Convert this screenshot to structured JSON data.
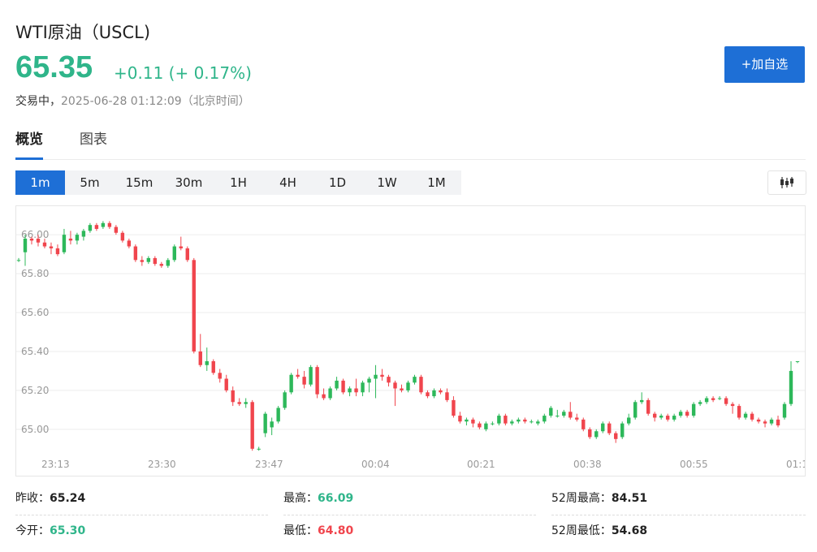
{
  "header": {
    "title": "WTI原油（USCL)",
    "price": "65.35",
    "change": "+0.11 (+ 0.17%)",
    "status_label": "交易中，",
    "timestamp": "2025-06-28 01:12:09（北京时间）",
    "add_button": "+加自选"
  },
  "tabs": [
    {
      "label": "概览",
      "active": true
    },
    {
      "label": "图表",
      "active": false
    }
  ],
  "periods": [
    "1m",
    "5m",
    "15m",
    "30m",
    "1H",
    "4H",
    "1D",
    "1W",
    "1M"
  ],
  "active_period": "1m",
  "colors": {
    "up": "#2db85a",
    "down": "#f0454d",
    "accent": "#1e6fd6",
    "price": "#2fb58a",
    "low": "#f0454d"
  },
  "chart_data": {
    "type": "candlestick",
    "y_ticks": [
      "66.00",
      "65.80",
      "65.60",
      "65.40",
      "65.20",
      "65.00"
    ],
    "ylim": [
      64.8,
      66.15
    ],
    "x_ticks": [
      "23:13",
      "23:30",
      "23:47",
      "00:04",
      "00:21",
      "00:38",
      "00:55",
      "01:1"
    ],
    "grid": true,
    "candles": [
      [
        65.87,
        65.88,
        65.86,
        65.87
      ],
      [
        65.91,
        66.0,
        65.84,
        65.98
      ],
      [
        65.98,
        65.99,
        65.95,
        65.97
      ],
      [
        65.98,
        66.0,
        65.94,
        65.96
      ],
      [
        65.96,
        65.98,
        65.93,
        65.94
      ],
      [
        65.94,
        65.96,
        65.9,
        65.93
      ],
      [
        65.93,
        65.95,
        65.89,
        65.9
      ],
      [
        65.91,
        66.03,
        65.9,
        66.0
      ],
      [
        65.98,
        66.02,
        65.95,
        65.97
      ],
      [
        65.97,
        66.01,
        65.95,
        66.0
      ],
      [
        65.99,
        66.03,
        65.97,
        66.02
      ],
      [
        66.02,
        66.06,
        66.01,
        66.05
      ],
      [
        66.05,
        66.06,
        66.02,
        66.03
      ],
      [
        66.04,
        66.07,
        66.03,
        66.06
      ],
      [
        66.06,
        66.07,
        66.03,
        66.04
      ],
      [
        66.04,
        66.05,
        66.0,
        66.01
      ],
      [
        66.01,
        66.02,
        65.96,
        65.97
      ],
      [
        65.97,
        65.98,
        65.93,
        65.94
      ],
      [
        65.94,
        65.95,
        65.86,
        65.87
      ],
      [
        65.87,
        65.89,
        65.84,
        65.86
      ],
      [
        65.86,
        65.89,
        65.85,
        65.88
      ],
      [
        65.88,
        65.89,
        65.84,
        65.85
      ],
      [
        65.85,
        65.86,
        65.83,
        65.84
      ],
      [
        65.84,
        65.88,
        65.83,
        65.87
      ],
      [
        65.87,
        65.95,
        65.86,
        65.94
      ],
      [
        65.94,
        65.99,
        65.92,
        65.93
      ],
      [
        65.93,
        65.94,
        65.86,
        65.87
      ],
      [
        65.87,
        65.88,
        65.39,
        65.4
      ],
      [
        65.4,
        65.49,
        65.32,
        65.33
      ],
      [
        65.33,
        65.42,
        65.3,
        65.35
      ],
      [
        65.35,
        65.36,
        65.28,
        65.29
      ],
      [
        65.29,
        65.31,
        65.24,
        65.26
      ],
      [
        65.26,
        65.28,
        65.19,
        65.2
      ],
      [
        65.2,
        65.22,
        65.12,
        65.14
      ],
      [
        65.14,
        65.16,
        65.12,
        65.13
      ],
      [
        65.13,
        65.16,
        65.11,
        65.14
      ],
      [
        65.14,
        65.15,
        64.89,
        64.9
      ],
      [
        64.9,
        64.91,
        64.89,
        64.9
      ],
      [
        64.98,
        65.09,
        64.96,
        65.08
      ],
      [
        65.01,
        65.06,
        64.97,
        65.04
      ],
      [
        65.04,
        65.12,
        65.03,
        65.11
      ],
      [
        65.11,
        65.2,
        65.1,
        65.19
      ],
      [
        65.19,
        65.29,
        65.18,
        65.28
      ],
      [
        65.28,
        65.31,
        65.26,
        65.27
      ],
      [
        65.27,
        65.3,
        65.21,
        65.23
      ],
      [
        65.23,
        65.33,
        65.22,
        65.32
      ],
      [
        65.32,
        65.33,
        65.16,
        65.18
      ],
      [
        65.18,
        65.21,
        65.15,
        65.16
      ],
      [
        65.16,
        65.22,
        65.15,
        65.21
      ],
      [
        65.21,
        65.27,
        65.2,
        65.25
      ],
      [
        65.25,
        65.26,
        65.18,
        65.19
      ],
      [
        65.19,
        65.22,
        65.17,
        65.21
      ],
      [
        65.21,
        65.26,
        65.17,
        65.19
      ],
      [
        65.19,
        65.25,
        65.17,
        65.24
      ],
      [
        65.24,
        65.27,
        65.19,
        65.26
      ],
      [
        65.26,
        65.33,
        65.16,
        65.28
      ],
      [
        65.28,
        65.31,
        65.25,
        65.27
      ],
      [
        65.27,
        65.28,
        65.22,
        65.24
      ],
      [
        65.24,
        65.25,
        65.12,
        65.21
      ],
      [
        65.21,
        65.23,
        65.19,
        65.2
      ],
      [
        65.2,
        65.25,
        65.19,
        65.24
      ],
      [
        65.24,
        65.28,
        65.23,
        65.27
      ],
      [
        65.27,
        65.28,
        65.18,
        65.19
      ],
      [
        65.19,
        65.2,
        65.16,
        65.17
      ],
      [
        65.17,
        65.21,
        65.16,
        65.2
      ],
      [
        65.2,
        65.21,
        65.18,
        65.19
      ],
      [
        65.19,
        65.21,
        65.14,
        65.15
      ],
      [
        65.15,
        65.17,
        65.06,
        65.07
      ],
      [
        65.07,
        65.09,
        65.03,
        65.04
      ],
      [
        65.04,
        65.06,
        65.02,
        65.05
      ],
      [
        65.05,
        65.06,
        65.01,
        65.03
      ],
      [
        65.03,
        65.04,
        65.0,
        65.01
      ],
      [
        65.0,
        65.04,
        64.99,
        65.03
      ],
      [
        65.03,
        65.04,
        65.02,
        65.03
      ],
      [
        65.03,
        65.08,
        65.02,
        65.07
      ],
      [
        65.07,
        65.08,
        65.02,
        65.03
      ],
      [
        65.03,
        65.05,
        65.02,
        65.04
      ],
      [
        65.04,
        65.06,
        65.03,
        65.05
      ],
      [
        65.05,
        65.06,
        65.03,
        65.04
      ],
      [
        65.04,
        65.05,
        65.03,
        65.04
      ],
      [
        65.03,
        65.05,
        65.02,
        65.04
      ],
      [
        65.04,
        65.08,
        65.03,
        65.07
      ],
      [
        65.07,
        65.12,
        65.06,
        65.11
      ],
      [
        65.07,
        65.1,
        65.06,
        65.07
      ],
      [
        65.07,
        65.1,
        65.06,
        65.09
      ],
      [
        65.09,
        65.14,
        65.05,
        65.06
      ],
      [
        65.06,
        65.08,
        65.04,
        65.05
      ],
      [
        65.05,
        65.06,
        64.99,
        65.0
      ],
      [
        65.0,
        65.01,
        64.95,
        64.96
      ],
      [
        64.96,
        65.0,
        64.95,
        64.99
      ],
      [
        64.99,
        65.04,
        64.98,
        65.03
      ],
      [
        65.03,
        65.04,
        64.97,
        64.98
      ],
      [
        64.98,
        64.99,
        64.93,
        64.95
      ],
      [
        64.96,
        65.04,
        64.95,
        65.03
      ],
      [
        65.03,
        65.08,
        65.02,
        65.06
      ],
      [
        65.06,
        65.15,
        65.05,
        65.14
      ],
      [
        65.14,
        65.19,
        65.13,
        65.15
      ],
      [
        65.15,
        65.16,
        65.07,
        65.08
      ],
      [
        65.08,
        65.09,
        65.04,
        65.06
      ],
      [
        65.06,
        65.08,
        65.05,
        65.07
      ],
      [
        65.07,
        65.08,
        65.04,
        65.05
      ],
      [
        65.05,
        65.08,
        65.04,
        65.07
      ],
      [
        65.07,
        65.1,
        65.06,
        65.09
      ],
      [
        65.09,
        65.1,
        65.06,
        65.07
      ],
      [
        65.07,
        65.14,
        65.06,
        65.13
      ],
      [
        65.13,
        65.15,
        65.12,
        65.14
      ],
      [
        65.14,
        65.17,
        65.13,
        65.16
      ],
      [
        65.16,
        65.17,
        65.14,
        65.15
      ],
      [
        65.16,
        65.17,
        65.15,
        65.16
      ],
      [
        65.16,
        65.17,
        65.12,
        65.13
      ],
      [
        65.13,
        65.14,
        65.08,
        65.12
      ],
      [
        65.12,
        65.13,
        65.05,
        65.06
      ],
      [
        65.06,
        65.09,
        65.05,
        65.08
      ],
      [
        65.08,
        65.09,
        65.04,
        65.05
      ],
      [
        65.05,
        65.06,
        65.03,
        65.04
      ],
      [
        65.04,
        65.05,
        65.01,
        65.03
      ],
      [
        65.03,
        65.06,
        65.02,
        65.05
      ],
      [
        65.05,
        65.07,
        65.01,
        65.02
      ],
      [
        65.06,
        65.14,
        65.05,
        65.13
      ],
      [
        65.13,
        65.35,
        65.12,
        65.3
      ],
      [
        65.35,
        65.35,
        65.34,
        65.35
      ]
    ]
  },
  "stats": [
    {
      "label": "昨收：",
      "value": "65.24",
      "tone": "neutral"
    },
    {
      "label": "最高：",
      "value": "66.09",
      "tone": "up"
    },
    {
      "label": "52周最高：",
      "value": "84.51",
      "tone": "neutral"
    },
    {
      "label": "今开：",
      "value": "65.30",
      "tone": "up"
    },
    {
      "label": "最低：",
      "value": "64.80",
      "tone": "down"
    },
    {
      "label": "52周最低：",
      "value": "54.68",
      "tone": "neutral"
    }
  ]
}
